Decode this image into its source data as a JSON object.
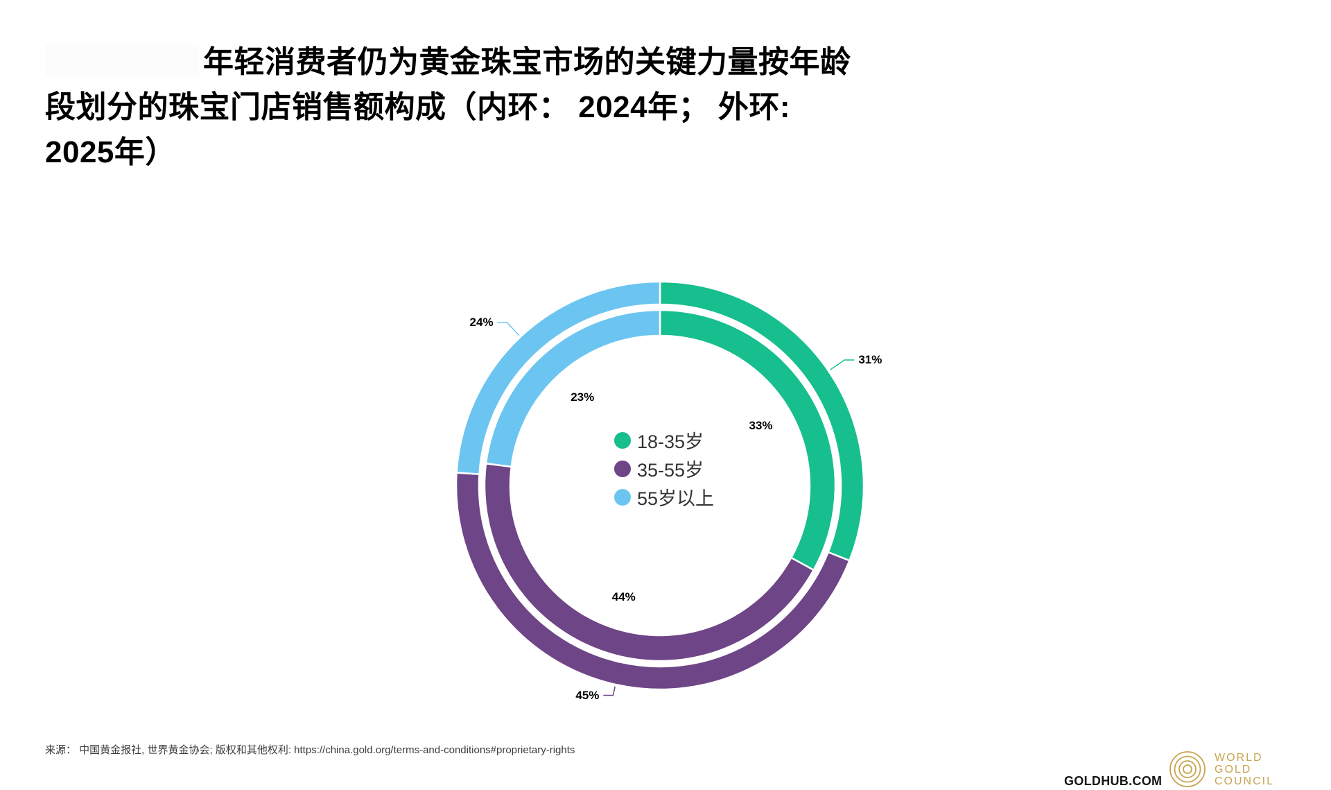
{
  "title": {
    "lines": [
      "年轻消费者仍为黄金珠宝市场的关键力量按年龄",
      "段划分的珠宝门店销售额构成（内环： 2024年； 外环:",
      "2025年）"
    ]
  },
  "chart_data": {
    "type": "pie",
    "subtype": "double-ring-donut",
    "title": "按年龄段划分的珠宝门店销售额构成",
    "categories": [
      "18-35岁",
      "35-55岁",
      "55岁以上"
    ],
    "colors": [
      "#17BE8E",
      "#6E4586",
      "#6CC5F0"
    ],
    "series": [
      {
        "name": "2024年",
        "ring": "inner",
        "values": [
          33,
          44,
          23
        ]
      },
      {
        "name": "2025年",
        "ring": "outer",
        "values": [
          31,
          45,
          24
        ]
      }
    ],
    "unit": "%",
    "start_angle": "12-o'clock, clockwise",
    "legend_position": "center-of-donut",
    "grid": false
  },
  "source": "来源： 中国黄金报社, 世界黄金协会; 版权和其他权利: https://china.gold.org/terms-and-conditions#proprietary-rights",
  "footer": {
    "goldhub": "GOLDHUB.COM",
    "logo": {
      "lines": [
        "WORLD",
        "GOLD",
        "COUNCIL"
      ],
      "color": "#C7A44E"
    }
  }
}
